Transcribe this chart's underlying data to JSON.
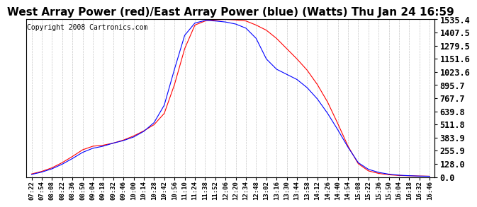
{
  "title": "West Array Power (red)/East Array Power (blue) (Watts) Thu Jan 24 16:59",
  "copyright": "Copyright 2008 Cartronics.com",
  "background_color": "#ffffff",
  "grid_color": "#c0c0c0",
  "ylim_max": 1535.4,
  "yticks": [
    0.0,
    128.0,
    255.9,
    383.9,
    511.8,
    639.8,
    767.7,
    895.7,
    1023.6,
    1151.6,
    1279.5,
    1407.5,
    1535.4
  ],
  "xtick_labels": [
    "07:22",
    "07:54",
    "08:08",
    "08:22",
    "08:36",
    "08:50",
    "09:04",
    "09:18",
    "09:32",
    "09:46",
    "10:00",
    "10:14",
    "10:28",
    "10:42",
    "10:56",
    "11:10",
    "11:24",
    "11:38",
    "11:52",
    "12:06",
    "12:20",
    "12:34",
    "12:48",
    "13:02",
    "13:16",
    "13:30",
    "13:44",
    "13:58",
    "14:12",
    "14:26",
    "14:40",
    "14:54",
    "15:08",
    "15:22",
    "15:36",
    "15:50",
    "16:04",
    "16:18",
    "16:32",
    "16:46"
  ],
  "red_color": "#ff0000",
  "blue_color": "#0000ff",
  "title_fontsize": 11,
  "copyright_fontsize": 7,
  "xtick_fontsize": 6.5,
  "ytick_fontsize": 8.5,
  "red_data": [
    30,
    55,
    90,
    140,
    200,
    265,
    300,
    310,
    330,
    360,
    400,
    450,
    510,
    620,
    900,
    1250,
    1480,
    1520,
    1530,
    1535,
    1530,
    1520,
    1480,
    1430,
    1350,
    1250,
    1150,
    1040,
    900,
    730,
    520,
    300,
    130,
    60,
    35,
    22,
    15,
    12,
    10,
    8
  ],
  "blue_data": [
    25,
    48,
    80,
    125,
    180,
    240,
    280,
    300,
    330,
    355,
    390,
    445,
    530,
    700,
    1050,
    1380,
    1500,
    1525,
    1520,
    1510,
    1490,
    1450,
    1350,
    1150,
    1050,
    1000,
    950,
    870,
    760,
    620,
    460,
    290,
    140,
    75,
    45,
    28,
    18,
    13,
    9,
    7
  ]
}
